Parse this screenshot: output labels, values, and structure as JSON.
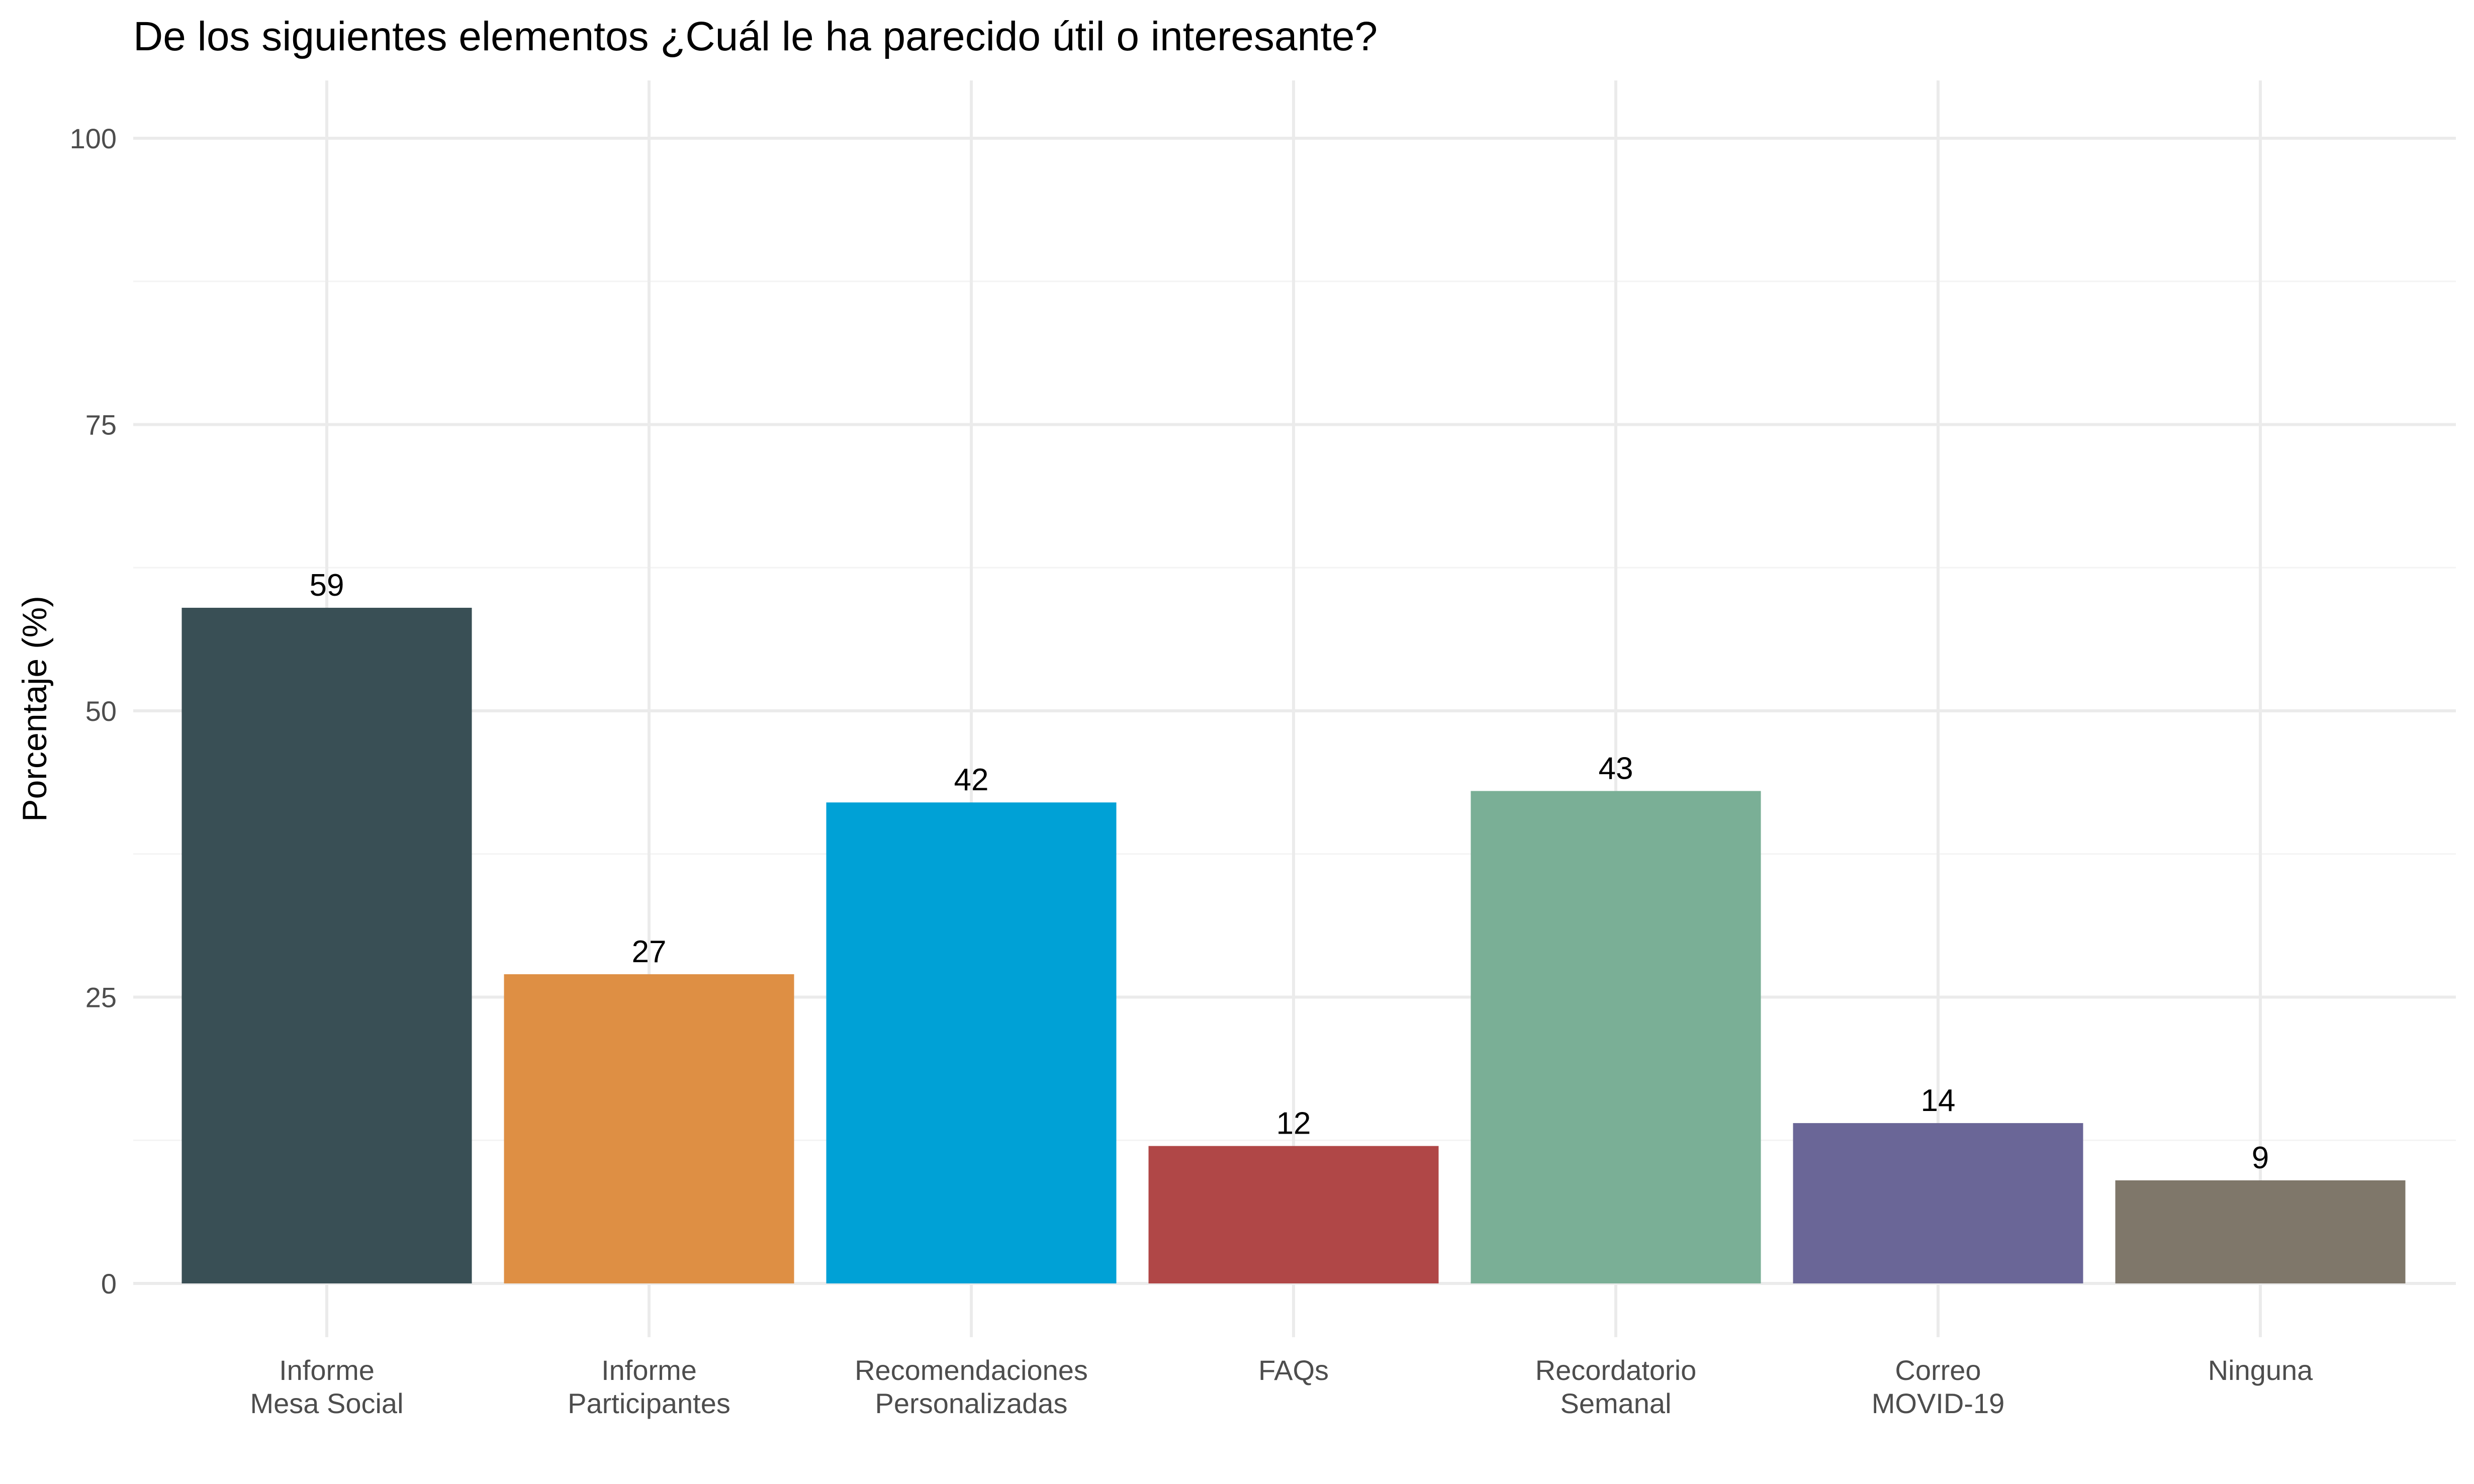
{
  "chart_data": {
    "type": "bar",
    "title": "De los siguientes elementos ¿Cuál le ha parecido útil o interesante?",
    "xlabel": "",
    "ylabel": "Porcentaje (%)",
    "ylim": [
      0,
      100
    ],
    "yticks": [
      "0",
      "25",
      "50",
      "75",
      "100"
    ],
    "grid": true,
    "legend": "none",
    "categories": [
      [
        "Informe",
        "Mesa Social"
      ],
      [
        "Informe",
        "Participantes"
      ],
      [
        "Recomendaciones",
        "Personalizadas"
      ],
      [
        "FAQs"
      ],
      [
        "Recordatorio",
        "Semanal"
      ],
      [
        "Correo",
        "MOVID-19"
      ],
      [
        "Ninguna"
      ]
    ],
    "values": [
      59,
      27,
      42,
      12,
      43,
      14,
      9
    ],
    "colors": [
      "#394f55",
      "#de8f44",
      "#00a1d6",
      "#b04747",
      "#7aaf96",
      "#6a6697",
      "#7f776a"
    ]
  }
}
